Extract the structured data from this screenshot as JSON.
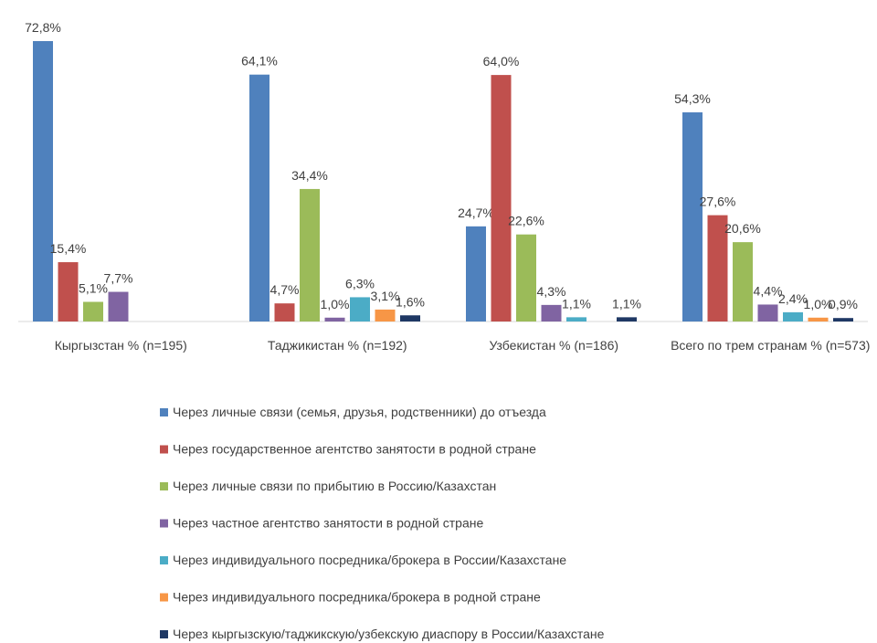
{
  "chart_data": {
    "type": "bar",
    "categories": [
      "Кыргызстан % (n=195)",
      "Таджикистан % (n=192)",
      "Узбекистан % (n=186)",
      "Всего по трем странам % (n=573)"
    ],
    "series": [
      {
        "name": "Через личные связи (семья, друзья, родственники) до отъезда",
        "color": "#4f81bd",
        "values": [
          72.8,
          64.1,
          24.7,
          54.3
        ],
        "value_labels": [
          "72,8%",
          "64,1%",
          "24,7%",
          "54,3%"
        ]
      },
      {
        "name": "Через государственное агентство занятости в родной стране",
        "color": "#c0504d",
        "values": [
          15.4,
          4.7,
          64.0,
          27.6
        ],
        "value_labels": [
          "15,4%",
          "4,7%",
          "64,0%",
          "27,6%"
        ]
      },
      {
        "name": "Через личные связи по прибытию в Россию/Казахстан",
        "color": "#9bbb59",
        "values": [
          5.1,
          34.4,
          22.6,
          20.6
        ],
        "value_labels": [
          "5,1%",
          "34,4%",
          "22,6%",
          "20,6%"
        ]
      },
      {
        "name": "Через частное агентство занятости в родной стране",
        "color": "#8064a2",
        "values": [
          7.7,
          1.0,
          4.3,
          4.4
        ],
        "value_labels": [
          "7,7%",
          "1,0%",
          "4,3%",
          "4,4%"
        ]
      },
      {
        "name": "Через индивидуального посредника/брокера в России/Казахстане",
        "color": "#4bacc6",
        "values": [
          null,
          6.3,
          1.1,
          2.4
        ],
        "value_labels": [
          null,
          "6,3%",
          "1,1%",
          "2,4%"
        ]
      },
      {
        "name": "Через индивидуального посредника/брокера в родной стране",
        "color": "#f79646",
        "values": [
          null,
          3.1,
          null,
          1.0
        ],
        "value_labels": [
          null,
          "3,1%",
          null,
          "1,0%"
        ]
      },
      {
        "name": "Через кыргызскую/таджикскую/узбекскую диаспору в России/Казахстане",
        "color": "#1f3864",
        "values": [
          null,
          1.6,
          1.1,
          0.9
        ],
        "value_labels": [
          null,
          "1,6%",
          "1,1%",
          "0,9%"
        ]
      }
    ]
  }
}
